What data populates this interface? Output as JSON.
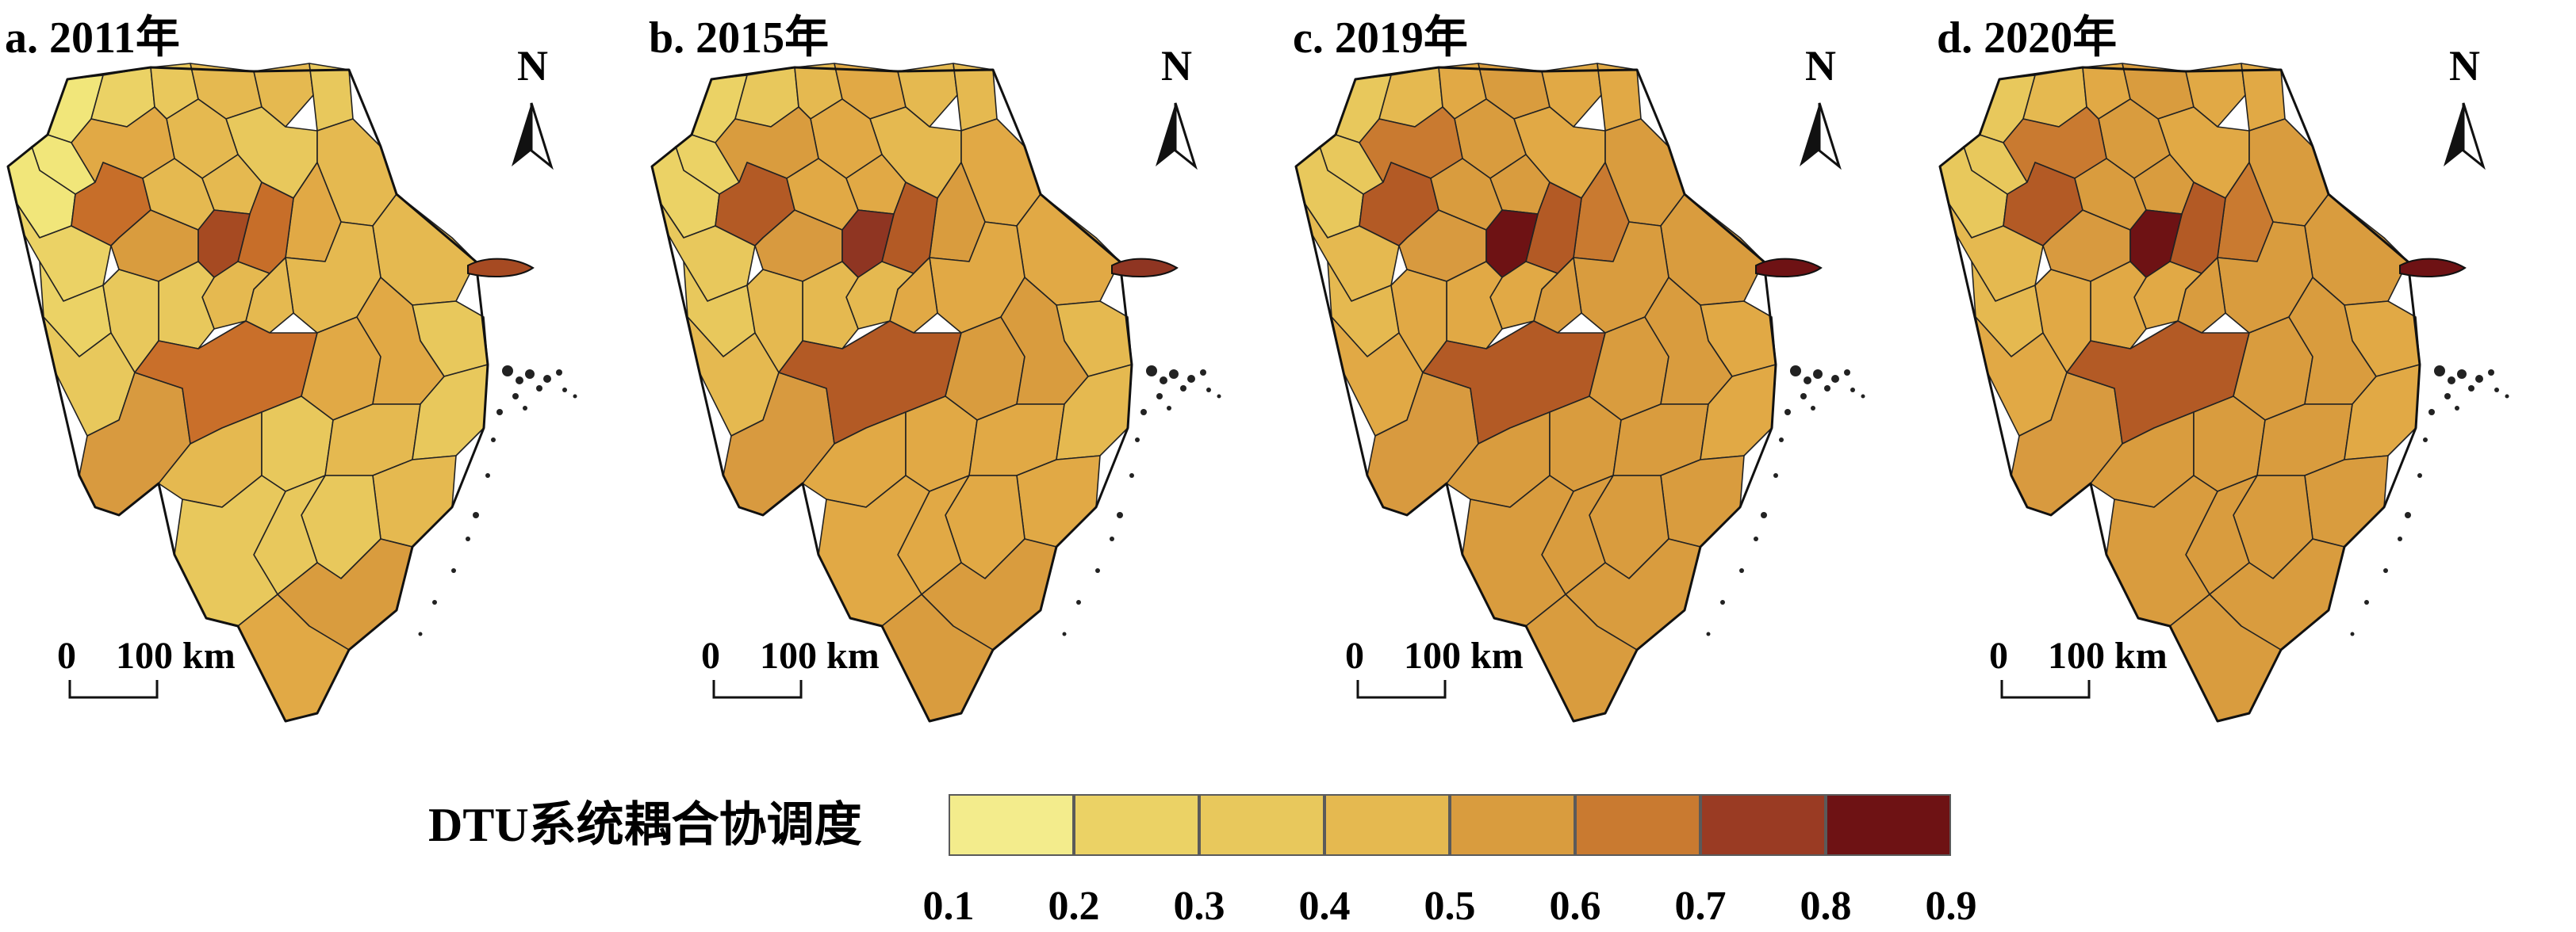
{
  "panels": [
    {
      "label": "a. 2011年",
      "colors": [
        "#f1e67a",
        "#f1e67a",
        "#f1e67a",
        "#ebd265",
        "#ebd265",
        "#e8c85c",
        "#d89a3f",
        "#ebd265",
        "#e9c85c",
        "#e5b950",
        "#e5b950",
        "#e8c85c",
        "#e8c85c",
        "#e5b950",
        "#e1a945",
        "#c76e29",
        "#d99c3e",
        "#e5b950",
        "#e5b950",
        "#e5b950",
        "#e1a945",
        "#c76e29",
        "#a64a22",
        "#e5b950",
        "#e8c85c",
        "#e5b950",
        "#e5b950",
        "#e5b950",
        "#e8c85c",
        "#e8c85c",
        "#c96f2a",
        "#e1a945",
        "#e1a945",
        "#e5b950",
        "#e8c85c",
        "#e5b950",
        "#e8c85c",
        "#e5b950",
        "#e8c85c",
        "#e8c85c",
        "#e8c85c",
        "#d99c3e",
        "#e1a945"
      ]
    },
    {
      "label": "b. 2015年",
      "colors": [
        "#ebd265",
        "#ebd265",
        "#ebd265",
        "#e8c85c",
        "#e8c85c",
        "#e5b950",
        "#d89a3f",
        "#e8c85c",
        "#e5b950",
        "#e1a945",
        "#e5b950",
        "#e5b950",
        "#e5b950",
        "#e1a945",
        "#d99c3e",
        "#b35a25",
        "#d89a3f",
        "#e1a945",
        "#e1a945",
        "#e1a945",
        "#d99c3e",
        "#b35a25",
        "#8f3522",
        "#e1a945",
        "#e5b950",
        "#e1a945",
        "#e1a945",
        "#e5b950",
        "#e5b950",
        "#e5b950",
        "#b35a25",
        "#d99c3e",
        "#d99c3e",
        "#e1a945",
        "#e1a945",
        "#e1a945",
        "#e5b950",
        "#e1a945",
        "#e1a945",
        "#e1a945",
        "#e1a945",
        "#d99c3e",
        "#d99c3e"
      ]
    },
    {
      "label": "c. 2019年",
      "colors": [
        "#e8c85c",
        "#e8c85c",
        "#e8c85c",
        "#e5b950",
        "#e5b950",
        "#e1a945",
        "#d89a3f",
        "#e5b950",
        "#e1a945",
        "#d99c3e",
        "#e1a945",
        "#e1a945",
        "#e1a945",
        "#d99c3e",
        "#c97a30",
        "#b35a25",
        "#d89a3f",
        "#d99c3e",
        "#d99c3e",
        "#d99c3e",
        "#c97a30",
        "#b35a25",
        "#6e1214",
        "#d99c3e",
        "#e1a945",
        "#d99c3e",
        "#d99c3e",
        "#e1a945",
        "#e1a945",
        "#e1a945",
        "#b35a25",
        "#d99c3e",
        "#d99c3e",
        "#d99c3e",
        "#d99c3e",
        "#d99c3e",
        "#e1a945",
        "#d99c3e",
        "#d99c3e",
        "#d99c3e",
        "#d99c3e",
        "#d99c3e",
        "#d99c3e"
      ]
    },
    {
      "label": "d. 2020年",
      "colors": [
        "#e8c85c",
        "#e8c85c",
        "#e8c85c",
        "#e5b950",
        "#e5b950",
        "#e1a945",
        "#d89a3f",
        "#e5b950",
        "#e1a945",
        "#d99c3e",
        "#e1a945",
        "#e1a945",
        "#e1a945",
        "#d99c3e",
        "#c97a30",
        "#b35a25",
        "#d89a3f",
        "#d99c3e",
        "#d99c3e",
        "#d99c3e",
        "#c97a30",
        "#b35a25",
        "#6e1214",
        "#d99c3e",
        "#e1a945",
        "#d99c3e",
        "#d99c3e",
        "#e1a945",
        "#e1a945",
        "#e1a945",
        "#b35a25",
        "#d99c3e",
        "#d99c3e",
        "#d99c3e",
        "#d99c3e",
        "#d99c3e",
        "#e1a945",
        "#d99c3e",
        "#d99c3e",
        "#d99c3e",
        "#d99c3e",
        "#d99c3e",
        "#d99c3e"
      ]
    }
  ],
  "north_label": "N",
  "scale": {
    "zero": "0",
    "distance": "100 km"
  },
  "legend": {
    "title": "DTU系统耦合协调度",
    "colors": [
      "#f3ec8c",
      "#ebd265",
      "#e8c85c",
      "#e5b950",
      "#d99c3e",
      "#c97a30",
      "#9a3b23",
      "#6e1214"
    ],
    "ticks": [
      "0.1",
      "0.2",
      "0.3",
      "0.4",
      "0.5",
      "0.6",
      "0.7",
      "0.8",
      "0.9"
    ]
  }
}
